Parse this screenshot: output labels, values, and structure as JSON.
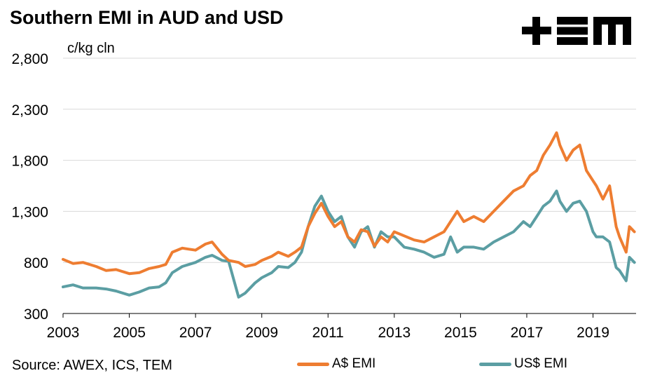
{
  "brand": {
    "logo_text": "+EM",
    "logo_color": "#000000"
  },
  "source": "Source: AWEX, ICS, TEM",
  "chart_data": {
    "type": "line",
    "title": "Southern EMI in AUD and USD",
    "ylabel": "c/kg cln",
    "xlabel": "",
    "xlim": [
      2003,
      2020.3
    ],
    "ylim": [
      300,
      2800
    ],
    "x_ticks": [
      2003,
      2005,
      2007,
      2009,
      2011,
      2013,
      2015,
      2017,
      2019
    ],
    "x_tick_labels": [
      "2003",
      "2005",
      "2007",
      "2009",
      "2011",
      "2013",
      "2015",
      "2017",
      "2019"
    ],
    "y_ticks": [
      300,
      800,
      1300,
      1800,
      2300,
      2800
    ],
    "y_tick_labels": [
      "300",
      "800",
      "1,300",
      "1,800",
      "2,300",
      "2,800"
    ],
    "grid": true,
    "legend_position": "bottom",
    "series": [
      {
        "name": "A$ EMI",
        "color": "#ee7d31",
        "x": [
          2003.0,
          2003.3,
          2003.6,
          2004.0,
          2004.3,
          2004.6,
          2005.0,
          2005.3,
          2005.6,
          2005.9,
          2006.1,
          2006.3,
          2006.6,
          2006.8,
          2007.0,
          2007.3,
          2007.5,
          2007.8,
          2008.0,
          2008.3,
          2008.5,
          2008.8,
          2009.0,
          2009.3,
          2009.5,
          2009.8,
          2010.0,
          2010.2,
          2010.4,
          2010.6,
          2010.8,
          2011.0,
          2011.2,
          2011.4,
          2011.6,
          2011.8,
          2012.0,
          2012.2,
          2012.4,
          2012.6,
          2012.8,
          2013.0,
          2013.3,
          2013.6,
          2013.9,
          2014.2,
          2014.5,
          2014.7,
          2014.9,
          2015.1,
          2015.4,
          2015.7,
          2016.0,
          2016.3,
          2016.6,
          2016.9,
          2017.1,
          2017.3,
          2017.5,
          2017.7,
          2017.9,
          2018.0,
          2018.2,
          2018.4,
          2018.6,
          2018.8,
          2019.0,
          2019.1,
          2019.3,
          2019.5,
          2019.7,
          2019.8,
          2020.0,
          2020.1,
          2020.25
        ],
        "values": [
          830,
          790,
          800,
          760,
          720,
          730,
          690,
          700,
          740,
          760,
          780,
          900,
          940,
          930,
          920,
          980,
          1000,
          880,
          820,
          800,
          760,
          780,
          820,
          860,
          900,
          860,
          900,
          950,
          1150,
          1280,
          1380,
          1250,
          1150,
          1200,
          1050,
          1000,
          1120,
          1100,
          960,
          1050,
          1000,
          1100,
          1060,
          1020,
          1000,
          1050,
          1100,
          1200,
          1300,
          1200,
          1250,
          1200,
          1300,
          1400,
          1500,
          1550,
          1650,
          1700,
          1850,
          1950,
          2070,
          1950,
          1800,
          1900,
          1950,
          1700,
          1600,
          1550,
          1420,
          1550,
          1150,
          1050,
          900,
          1150,
          1100
        ]
      },
      {
        "name": "US$ EMI",
        "color": "#5b9ea3",
        "x": [
          2003.0,
          2003.3,
          2003.6,
          2004.0,
          2004.3,
          2004.6,
          2005.0,
          2005.3,
          2005.6,
          2005.9,
          2006.1,
          2006.3,
          2006.6,
          2006.8,
          2007.0,
          2007.3,
          2007.5,
          2007.8,
          2008.0,
          2008.3,
          2008.5,
          2008.8,
          2009.0,
          2009.3,
          2009.5,
          2009.8,
          2010.0,
          2010.2,
          2010.4,
          2010.6,
          2010.8,
          2011.0,
          2011.2,
          2011.4,
          2011.6,
          2011.8,
          2012.0,
          2012.2,
          2012.4,
          2012.6,
          2012.8,
          2013.0,
          2013.3,
          2013.6,
          2013.9,
          2014.2,
          2014.5,
          2014.7,
          2014.9,
          2015.1,
          2015.4,
          2015.7,
          2016.0,
          2016.3,
          2016.6,
          2016.9,
          2017.1,
          2017.3,
          2017.5,
          2017.7,
          2017.9,
          2018.0,
          2018.2,
          2018.4,
          2018.6,
          2018.8,
          2019.0,
          2019.1,
          2019.3,
          2019.5,
          2019.7,
          2019.8,
          2020.0,
          2020.1,
          2020.25
        ],
        "values": [
          560,
          580,
          550,
          550,
          540,
          520,
          480,
          510,
          550,
          560,
          600,
          700,
          760,
          780,
          800,
          850,
          870,
          820,
          810,
          460,
          500,
          600,
          650,
          700,
          760,
          750,
          800,
          900,
          1150,
          1350,
          1450,
          1300,
          1200,
          1250,
          1050,
          950,
          1100,
          1150,
          950,
          1100,
          1050,
          1050,
          950,
          930,
          900,
          850,
          880,
          1050,
          900,
          950,
          950,
          930,
          1000,
          1050,
          1100,
          1200,
          1150,
          1250,
          1350,
          1400,
          1500,
          1400,
          1300,
          1380,
          1400,
          1300,
          1100,
          1050,
          1050,
          1000,
          750,
          720,
          620,
          850,
          800
        ]
      }
    ]
  }
}
